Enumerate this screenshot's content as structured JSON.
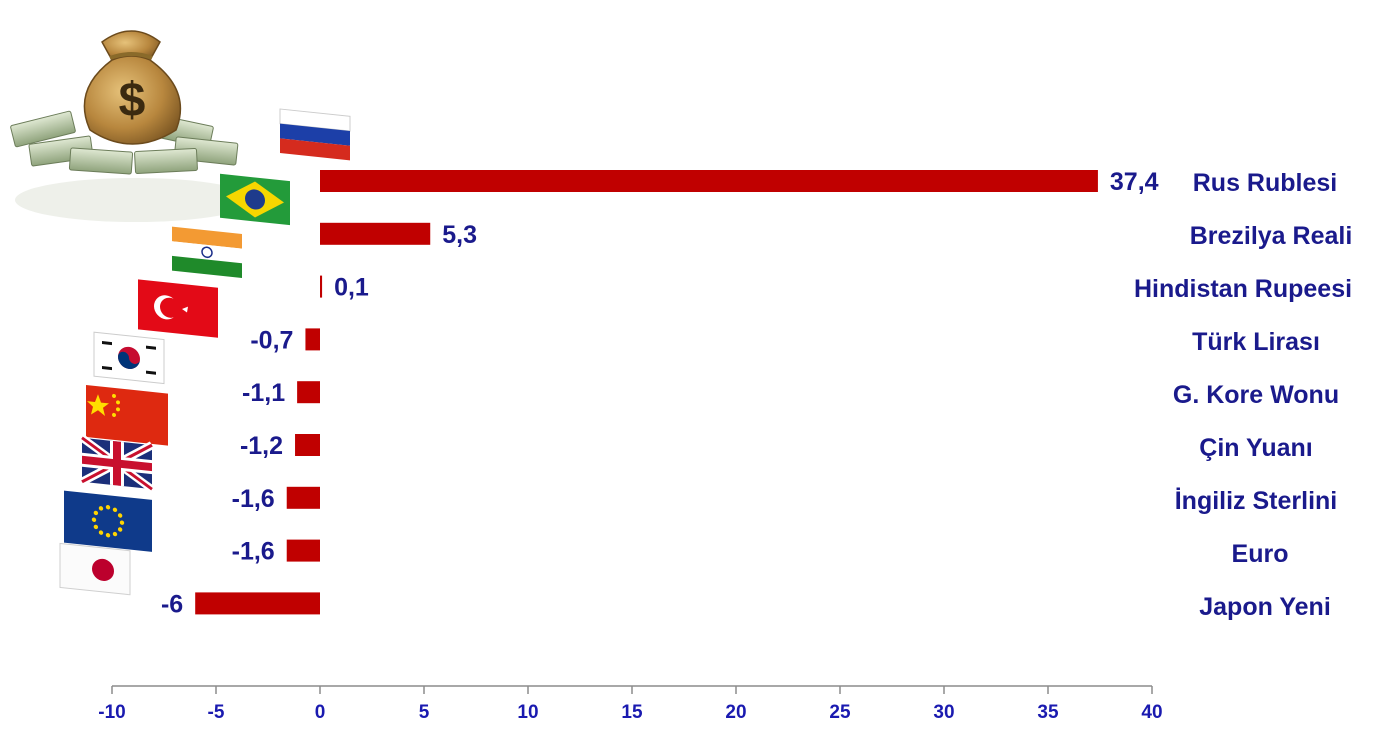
{
  "chart_data": {
    "type": "bar",
    "orientation": "horizontal",
    "categories": [
      "Rus Rublesi",
      "Brezilya Reali",
      "Hindistan Rupeesi",
      "Türk Lirası",
      "G. Kore Wonu",
      "Çin Yuanı",
      "İngiliz Sterlini",
      "Euro",
      "Japon Yeni"
    ],
    "values": [
      37.4,
      5.3,
      0.1,
      -0.7,
      -1.1,
      -1.2,
      -1.6,
      -1.6,
      -6
    ],
    "value_labels": [
      "37,4",
      "5,3",
      "0,1",
      "-0,7",
      "-1,1",
      "-1,2",
      "-1,6",
      "-1,6",
      "-6"
    ],
    "flag_icons": [
      "russia-flag-icon",
      "brazil-flag-icon",
      "india-flag-icon",
      "turkey-flag-icon",
      "south-korea-flag-icon",
      "china-flag-icon",
      "uk-flag-icon",
      "eu-flag-icon",
      "japan-flag-icon"
    ],
    "xlim": [
      -10,
      40
    ],
    "xticks": [
      -10,
      -5,
      0,
      5,
      10,
      15,
      20,
      25,
      30,
      35,
      40
    ],
    "xtick_labels": [
      "-10",
      "-5",
      "0",
      "5",
      "10",
      "15",
      "20",
      "25",
      "30",
      "35",
      "40"
    ],
    "grid": false,
    "legend": "none",
    "title": "",
    "xlabel": "",
    "ylabel": "",
    "colors": {
      "bar": "#c00000",
      "text": "#1a1a8c",
      "axis": "#8c8c8c"
    }
  },
  "decoration": {
    "icon": "money-bag-icon"
  }
}
